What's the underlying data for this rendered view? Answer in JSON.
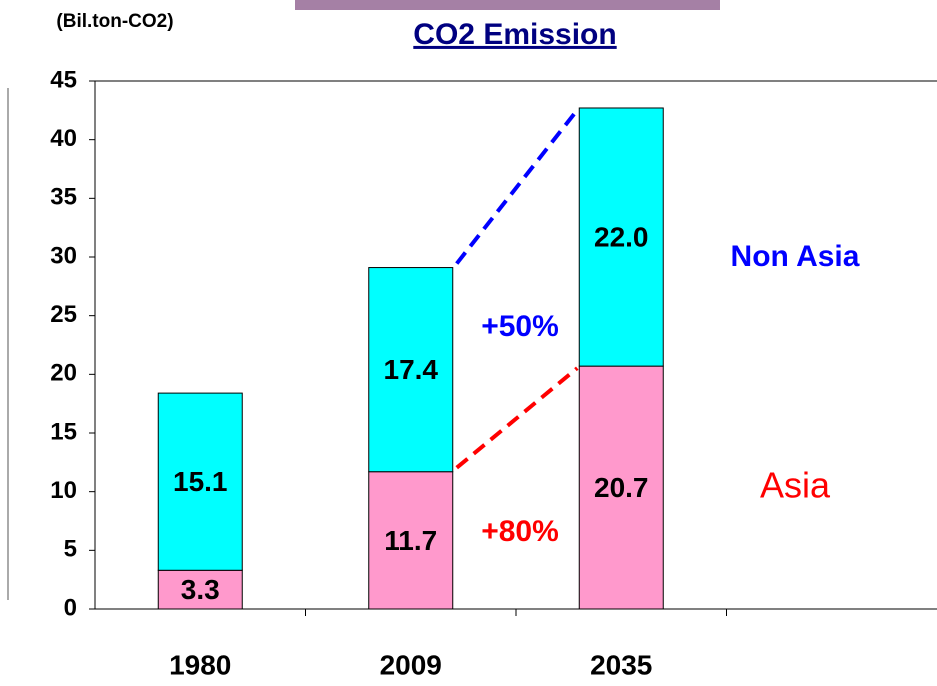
{
  "chart_data": {
    "type": "stacked_bar",
    "title": "CO2 Emission",
    "y_label": "(Bil.ton-CO2)",
    "categories": [
      "1980",
      "2009",
      "2035",
      null
    ],
    "series": [
      {
        "name": "Asia",
        "color": "#ff99cc",
        "label_color": "#ff0000",
        "values": [
          3.3,
          11.7,
          20.7,
          null
        ]
      },
      {
        "name": "Non Asia",
        "color": "#00ffff",
        "label_color": "#0000ff",
        "values": [
          15.1,
          17.4,
          22.0,
          null
        ],
        "value_labels": [
          "15.1",
          "17.4",
          "22.0",
          null
        ]
      }
    ],
    "annotations": [
      {
        "text": "+50%",
        "color": "#0000ff"
      },
      {
        "text": "+80%",
        "color": "#ff0000"
      }
    ],
    "ylim": [
      0,
      45
    ],
    "yticks": [
      0,
      5,
      10,
      15,
      20,
      25,
      30,
      35,
      40,
      45
    ],
    "grid": false
  }
}
